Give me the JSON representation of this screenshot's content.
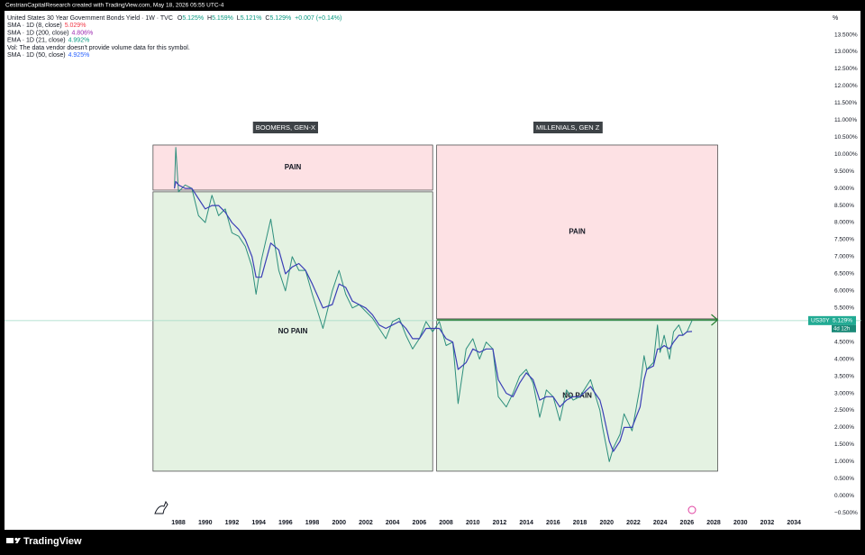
{
  "header": {
    "credit": "CestrianCapitalResearch created with TradingView.com, May 18, 2026 05:55 UTC-4",
    "symbol": "United States 30 Year Government Bonds Yield · 1W · TVC",
    "ohlc": [
      {
        "label": "O",
        "value": "5.125%"
      },
      {
        "label": "H",
        "value": "5.159%"
      },
      {
        "label": "L",
        "value": "5.121%"
      },
      {
        "label": "C",
        "value": "5.129%"
      }
    ],
    "change": "+0.007 (+0.14%)",
    "indicators": [
      {
        "name": "SMA · 1D (8, close)",
        "value": "5.029%",
        "color": "#f23645"
      },
      {
        "name": "SMA · 1D (200, close)",
        "value": "4.806%",
        "color": "#9c27b0"
      },
      {
        "name": "EMA · 1D (21, close)",
        "value": "4.992%",
        "color": "#089981"
      },
      {
        "name": "Vol: The data vendor doesn't provide volume data for this symbol."
      },
      {
        "name": "SMA · 1D (50, close)",
        "value": "4.925%",
        "color": "#2962ff"
      }
    ]
  },
  "chart_data": {
    "type": "line",
    "ylabel": "%",
    "xlim": [
      1975,
      2035
    ],
    "ylim": [
      -0.6,
      14.2
    ],
    "xticks": [
      1988,
      1990,
      1992,
      1994,
      1996,
      1998,
      2000,
      2002,
      2004,
      2006,
      2008,
      2010,
      2012,
      2014,
      2016,
      2018,
      2020,
      2022,
      2024,
      2026,
      2028,
      2030,
      2032,
      2034
    ],
    "yticks": [
      {
        "value": -0.5,
        "label": "−0.500%"
      },
      {
        "value": 0,
        "label": "0.000%"
      },
      {
        "value": 0.5,
        "label": "0.500%"
      },
      {
        "value": 1,
        "label": "1.000%"
      },
      {
        "value": 1.5,
        "label": "1.500%"
      },
      {
        "value": 2,
        "label": "2.000%"
      },
      {
        "value": 2.5,
        "label": "2.500%"
      },
      {
        "value": 3,
        "label": "3.000%"
      },
      {
        "value": 3.5,
        "label": "3.500%"
      },
      {
        "value": 4,
        "label": "4.000%"
      },
      {
        "value": 4.5,
        "label": "4.500%"
      },
      {
        "value": 5,
        "label": "5.000%"
      },
      {
        "value": 5.5,
        "label": "5.500%"
      },
      {
        "value": 6,
        "label": "6.000%"
      },
      {
        "value": 6.5,
        "label": "6.500%"
      },
      {
        "value": 7,
        "label": "7.000%"
      },
      {
        "value": 7.5,
        "label": "7.500%"
      },
      {
        "value": 8,
        "label": "8.000%"
      },
      {
        "value": 8.5,
        "label": "8.500%"
      },
      {
        "value": 9,
        "label": "9.000%"
      },
      {
        "value": 9.5,
        "label": "9.500%"
      },
      {
        "value": 10,
        "label": "10.000%"
      },
      {
        "value": 10.5,
        "label": "10.500%"
      },
      {
        "value": 11,
        "label": "11.000%"
      },
      {
        "value": 11.5,
        "label": "11.500%"
      },
      {
        "value": 12,
        "label": "12.000%"
      },
      {
        "value": 12.5,
        "label": "12.500%"
      },
      {
        "value": 13,
        "label": "13.000%"
      },
      {
        "value": 13.5,
        "label": "13.500%"
      }
    ],
    "grid": false,
    "x": [
      1987.7,
      1987.8,
      1988.0,
      1988.5,
      1989.0,
      1989.5,
      1990.0,
      1990.5,
      1991.0,
      1991.5,
      1992.0,
      1992.5,
      1993.0,
      1993.5,
      1993.8,
      1994.2,
      1994.9,
      1995.5,
      1996.0,
      1996.5,
      1997.0,
      1997.5,
      1998.0,
      1998.8,
      1999.5,
      2000.0,
      2000.5,
      2001.0,
      2001.5,
      2002.0,
      2002.5,
      2003.0,
      2003.5,
      2004.0,
      2004.5,
      2005.0,
      2005.5,
      2006.0,
      2006.5,
      2007.0,
      2007.5,
      2008.0,
      2008.5,
      2008.9,
      2009.5,
      2010.0,
      2010.5,
      2011.0,
      2011.5,
      2011.9,
      2012.5,
      2013.0,
      2013.5,
      2014.0,
      2014.5,
      2015.0,
      2015.5,
      2016.0,
      2016.5,
      2017.0,
      2017.5,
      2018.0,
      2018.8,
      2019.5,
      2019.7,
      2020.2,
      2020.5,
      2021.0,
      2021.3,
      2021.9,
      2022.5,
      2022.8,
      2023.0,
      2023.5,
      2023.8,
      2024.0,
      2024.3,
      2024.7,
      2025.0,
      2025.4,
      2025.7,
      2026.0,
      2026.38
    ],
    "series": [
      {
        "name": "US30Y",
        "color": "#2e8f7d",
        "values": [
          9.0,
          10.2,
          8.9,
          9.1,
          9.0,
          8.2,
          8.0,
          8.8,
          8.2,
          8.4,
          7.7,
          7.6,
          7.3,
          6.7,
          5.9,
          6.9,
          8.1,
          6.6,
          6.0,
          7.0,
          6.6,
          6.6,
          5.9,
          4.9,
          6.0,
          6.6,
          5.9,
          5.5,
          5.6,
          5.4,
          5.2,
          4.9,
          4.6,
          5.1,
          5.2,
          4.7,
          4.3,
          4.6,
          5.1,
          4.8,
          5.1,
          4.4,
          4.5,
          2.7,
          4.3,
          4.6,
          4.0,
          4.5,
          4.3,
          2.9,
          2.6,
          3.0,
          3.5,
          3.7,
          3.3,
          2.3,
          3.1,
          2.9,
          2.2,
          3.1,
          2.8,
          2.9,
          3.4,
          2.5,
          2.0,
          1.0,
          1.4,
          1.8,
          2.4,
          1.9,
          3.2,
          4.1,
          3.7,
          3.9,
          5.0,
          4.2,
          4.7,
          4.0,
          4.8,
          5.0,
          4.7,
          4.8,
          5.13
        ]
      },
      {
        "color": "#3b3fb6",
        "values": [
          9.0,
          9.2,
          9.1,
          9.0,
          9.0,
          8.7,
          8.4,
          8.5,
          8.5,
          8.3,
          8.0,
          7.8,
          7.5,
          7.0,
          6.4,
          6.4,
          7.4,
          7.2,
          6.5,
          6.7,
          6.8,
          6.6,
          6.2,
          5.5,
          5.6,
          6.2,
          6.1,
          5.7,
          5.6,
          5.5,
          5.3,
          5.0,
          4.9,
          5.0,
          5.1,
          4.9,
          4.6,
          4.6,
          4.9,
          4.9,
          4.9,
          4.6,
          4.5,
          3.7,
          3.9,
          4.3,
          4.2,
          4.3,
          4.3,
          3.4,
          3.0,
          2.9,
          3.3,
          3.6,
          3.4,
          2.8,
          2.9,
          2.9,
          2.6,
          2.8,
          2.9,
          2.9,
          3.2,
          2.8,
          2.5,
          1.6,
          1.3,
          1.6,
          2.0,
          2.0,
          2.6,
          3.4,
          3.7,
          3.8,
          4.3,
          4.3,
          4.4,
          4.3,
          4.5,
          4.7,
          4.7,
          4.8,
          4.81
        ]
      }
    ],
    "last_value": 5.129,
    "last_label": "5.129%",
    "countdown": "4d 12h",
    "annotations": {
      "groups": [
        {
          "label": "BOOMERS, GEN-X",
          "x": 1996.0,
          "y": 10.77
        },
        {
          "label": "MILLENIALS, GEN Z",
          "x": 2017.1,
          "y": 10.77
        }
      ],
      "boxes": [
        {
          "label": "PAIN",
          "x": [
            1986.1,
            2007.0
          ],
          "y": [
            8.95,
            10.27
          ],
          "color": "#fde1e4"
        },
        {
          "label": "NO PAIN",
          "x": [
            1986.1,
            2007.0
          ],
          "y": [
            0.72,
            8.9
          ],
          "color": "#e4f2e2"
        },
        {
          "label": "PAIN",
          "x": [
            2007.3,
            2028.3
          ],
          "y": [
            5.18,
            10.27
          ],
          "color": "#fde1e4"
        },
        {
          "label": "NO PAIN",
          "x": [
            2007.3,
            2028.3
          ],
          "y": [
            0.72,
            5.13
          ],
          "color": "#e4f2e2"
        }
      ],
      "trend_line": {
        "x": [
          2007.3,
          2028.3
        ],
        "y": [
          5.15,
          5.15
        ],
        "color": "#1f7a2c"
      }
    }
  },
  "footer": {
    "brand": "TradingView"
  }
}
